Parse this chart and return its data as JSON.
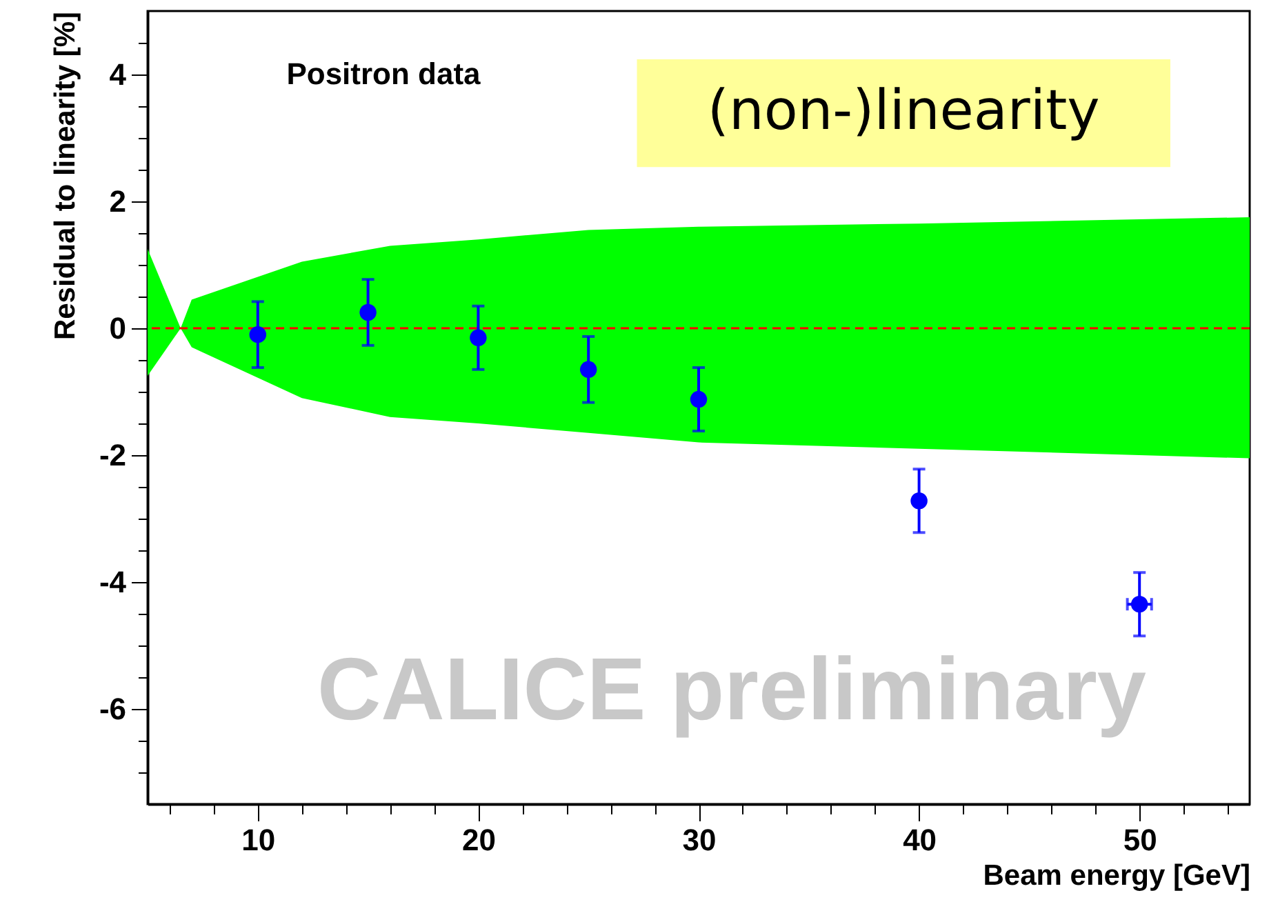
{
  "chart_data": {
    "xlabel": "Beam energy [GeV]",
    "ylabel": "Residual to linearity [%]",
    "annotations": [
      "Positron data",
      "(non-)linearity",
      "CALICE   preliminary"
    ],
    "xlim": [
      5,
      55
    ],
    "ylim": [
      -7.5,
      5
    ],
    "xticks": [
      {
        "value": 6,
        "label": null
      },
      {
        "value": 8,
        "label": null
      },
      10,
      {
        "value": 12,
        "label": null
      },
      {
        "value": 14,
        "label": null
      },
      {
        "value": 16,
        "label": null
      },
      {
        "value": 18,
        "label": null
      },
      20,
      {
        "value": 22,
        "label": null
      },
      {
        "value": 24,
        "label": null
      },
      {
        "value": 26,
        "label": null
      },
      {
        "value": 28,
        "label": null
      },
      30,
      {
        "value": 32,
        "label": null
      },
      {
        "value": 34,
        "label": null
      },
      {
        "value": 36,
        "label": null
      },
      {
        "value": 38,
        "label": null
      },
      40,
      {
        "value": 42,
        "label": null
      },
      {
        "value": 44,
        "label": null
      },
      {
        "value": 46,
        "label": null
      },
      {
        "value": 48,
        "label": null
      },
      50,
      {
        "value": 52,
        "label": null
      },
      {
        "value": 54,
        "label": null
      }
    ],
    "yticks": [
      {
        "value": -7,
        "label": null
      },
      {
        "value": -6.5,
        "label": null
      },
      -6,
      {
        "value": -5.5,
        "label": null
      },
      {
        "value": -5,
        "label": null
      },
      {
        "value": -4.5,
        "label": null
      },
      -4,
      {
        "value": -3.5,
        "label": null
      },
      {
        "value": -3,
        "label": null
      },
      {
        "value": -2.5,
        "label": null
      },
      -2,
      {
        "value": -1.5,
        "label": null
      },
      {
        "value": -1,
        "label": null
      },
      {
        "value": -0.5,
        "label": null
      },
      0,
      {
        "value": 0.5,
        "label": null
      },
      {
        "value": 1,
        "label": null
      },
      {
        "value": 1.5,
        "label": null
      },
      2,
      {
        "value": 2.5,
        "label": null
      },
      {
        "value": 3,
        "label": null
      },
      {
        "value": 3.5,
        "label": null
      },
      4,
      {
        "value": 4.5,
        "label": null
      }
    ],
    "ref_lines": [
      {
        "axis": "y",
        "value": 0,
        "color": "#ff0000",
        "line_style": "dashed"
      }
    ],
    "type": "area",
    "grid": false,
    "series": [
      {
        "color": "#00ff00",
        "x": [
          5,
          6.5,
          7,
          12,
          16,
          20,
          25,
          30,
          40,
          55
        ],
        "values": [
          1.25,
          0,
          0.45,
          1.05,
          1.3,
          1.4,
          1.55,
          1.6,
          1.65,
          1.75
        ]
      },
      {
        "color": "#00ff00",
        "x": [
          5,
          6.5,
          7,
          12,
          16,
          20,
          25,
          30,
          40,
          55
        ],
        "values": [
          -0.75,
          0,
          -0.3,
          -1.1,
          -1.4,
          -1.5,
          -1.65,
          -1.8,
          -1.9,
          -2.05
        ]
      },
      {
        "type": "scatter",
        "color": "#0000ff",
        "marker": "circle",
        "x": [
          10,
          15,
          20,
          25,
          30,
          40,
          50
        ],
        "values": [
          -0.1,
          0.25,
          -0.15,
          -0.65,
          -1.12,
          -2.72,
          -4.35
        ],
        "errors": [
          0.52,
          0.52,
          0.5,
          0.52,
          0.5,
          0.5,
          0.5
        ],
        "xerrors": [
          null,
          null,
          null,
          null,
          null,
          null,
          0.55
        ]
      }
    ]
  }
}
